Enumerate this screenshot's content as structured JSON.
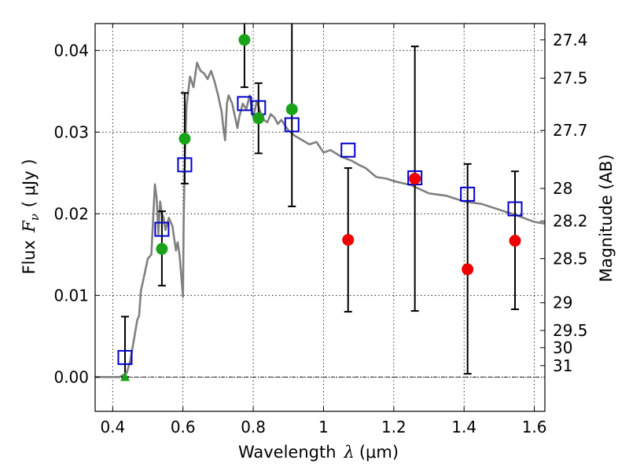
{
  "chart_data": {
    "type": "scatter",
    "xlabel_text": "Wavelength",
    "xlabel_symbol": "λ",
    "xlabel_unit": "(μm)",
    "ylabel_text": "Flux",
    "ylabel_symbol": "F",
    "ylabel_subscript": "ν",
    "ylabel_unit": "( μJy )",
    "y2label": "Magnitude (AB)",
    "xlim": [
      0.35,
      1.63
    ],
    "ylim": [
      -0.0042,
      0.0433
    ],
    "xticks": [
      0.4,
      0.6,
      0.8,
      1.0,
      1.2,
      1.4,
      1.6
    ],
    "xtick_labels": [
      "0.4",
      "0.6",
      "0.8",
      "1",
      "1.2",
      "1.4",
      "1.6"
    ],
    "yticks": [
      0.0,
      0.01,
      0.02,
      0.03,
      0.04
    ],
    "ytick_labels": [
      "0.00",
      "0.01",
      "0.02",
      "0.03",
      "0.04"
    ],
    "y2ticks": [
      {
        "flux": 0.0413,
        "label": "27.4"
      },
      {
        "flux": 0.0366,
        "label": "27.5"
      },
      {
        "flux": 0.0302,
        "label": "27.7"
      },
      {
        "flux": 0.0231,
        "label": "28"
      },
      {
        "flux": 0.0191,
        "label": "28.2"
      },
      {
        "flux": 0.0145,
        "label": "28.5"
      },
      {
        "flux": 0.0091,
        "label": "29"
      },
      {
        "flux": 0.0057,
        "label": "29.5"
      },
      {
        "flux": 0.0036,
        "label": "30"
      },
      {
        "flux": 0.0014,
        "label": "31"
      }
    ],
    "grid": true,
    "colors": {
      "model": "#808080",
      "blue_squares": "#0000cc",
      "green_points": "#1aa31a",
      "red_points": "#ee0000",
      "errorbars": "#000000"
    },
    "series": [
      {
        "name": "Model SED",
        "kind": "line",
        "x": [
          0.35,
          0.42,
          0.44,
          0.45,
          0.46,
          0.47,
          0.475,
          0.48,
          0.49,
          0.5,
          0.51,
          0.52,
          0.525,
          0.53,
          0.535,
          0.54,
          0.545,
          0.55,
          0.56,
          0.57,
          0.575,
          0.58,
          0.585,
          0.59,
          0.595,
          0.6,
          0.602,
          0.605,
          0.61,
          0.62,
          0.63,
          0.64,
          0.65,
          0.66,
          0.67,
          0.68,
          0.69,
          0.7,
          0.71,
          0.715,
          0.72,
          0.725,
          0.73,
          0.735,
          0.74,
          0.745,
          0.75,
          0.755,
          0.76,
          0.77,
          0.78,
          0.79,
          0.8,
          0.81,
          0.82,
          0.83,
          0.84,
          0.85,
          0.86,
          0.87,
          0.88,
          0.9,
          0.92,
          0.94,
          0.96,
          0.98,
          1.0,
          1.02,
          1.05,
          1.08,
          1.1,
          1.12,
          1.15,
          1.18,
          1.2,
          1.25,
          1.3,
          1.35,
          1.4,
          1.45,
          1.5,
          1.55,
          1.6,
          1.63
        ],
        "y": [
          0.0,
          0.0,
          0.0005,
          0.002,
          0.0045,
          0.007,
          0.0075,
          0.0105,
          0.0125,
          0.0145,
          0.015,
          0.0236,
          0.022,
          0.0175,
          0.0215,
          0.02,
          0.0195,
          0.018,
          0.0195,
          0.0185,
          0.017,
          0.0155,
          0.0165,
          0.015,
          0.0125,
          0.0098,
          0.019,
          0.0264,
          0.0332,
          0.0368,
          0.0355,
          0.0385,
          0.0375,
          0.0372,
          0.0365,
          0.0375,
          0.0362,
          0.0345,
          0.0325,
          0.0305,
          0.029,
          0.0335,
          0.0345,
          0.034,
          0.0335,
          0.0325,
          0.0315,
          0.0305,
          0.0318,
          0.0335,
          0.0328,
          0.0345,
          0.0318,
          0.0338,
          0.0325,
          0.0315,
          0.0312,
          0.0322,
          0.0318,
          0.031,
          0.0315,
          0.0302,
          0.0295,
          0.029,
          0.0285,
          0.0288,
          0.0275,
          0.0278,
          0.027,
          0.0265,
          0.026,
          0.0256,
          0.0245,
          0.0243,
          0.024,
          0.0235,
          0.0225,
          0.0222,
          0.0215,
          0.0212,
          0.0205,
          0.0198,
          0.019,
          0.0188
        ]
      },
      {
        "name": "Model fluxes",
        "kind": "square",
        "x": [
          0.435,
          0.54,
          0.605,
          0.775,
          0.815,
          0.91,
          1.07,
          1.26,
          1.41,
          1.545
        ],
        "y": [
          0.0024,
          0.0181,
          0.026,
          0.0335,
          0.033,
          0.0309,
          0.0278,
          0.0244,
          0.0224,
          0.0206
        ]
      },
      {
        "name": "Measured (green)",
        "kind": "circle",
        "x": [
          0.54,
          0.605,
          0.775,
          0.815,
          0.91
        ],
        "y": [
          0.0157,
          0.0292,
          0.0413,
          0.0317,
          0.0328
        ],
        "yerr_low": [
          0.0112,
          0.0237,
          0.0355,
          0.0274,
          0.0209
        ],
        "yerr_high": [
          0.0203,
          0.0348,
          0.047,
          0.036,
          0.047
        ]
      },
      {
        "name": "Measured (red)",
        "kind": "circle",
        "x": [
          1.07,
          1.26,
          1.41,
          1.545
        ],
        "y": [
          0.0168,
          0.0243,
          0.0132,
          0.0167
        ],
        "yerr_low": [
          0.008,
          0.0081,
          0.0004,
          0.0083
        ],
        "yerr_high": [
          0.0256,
          0.0405,
          0.0261,
          0.0252
        ]
      },
      {
        "name": "Upper limit",
        "kind": "triangle",
        "x": [
          0.435
        ],
        "y": [
          0.0
        ],
        "yerr_low": [
          0.0
        ],
        "yerr_high": [
          0.0074
        ]
      }
    ]
  }
}
